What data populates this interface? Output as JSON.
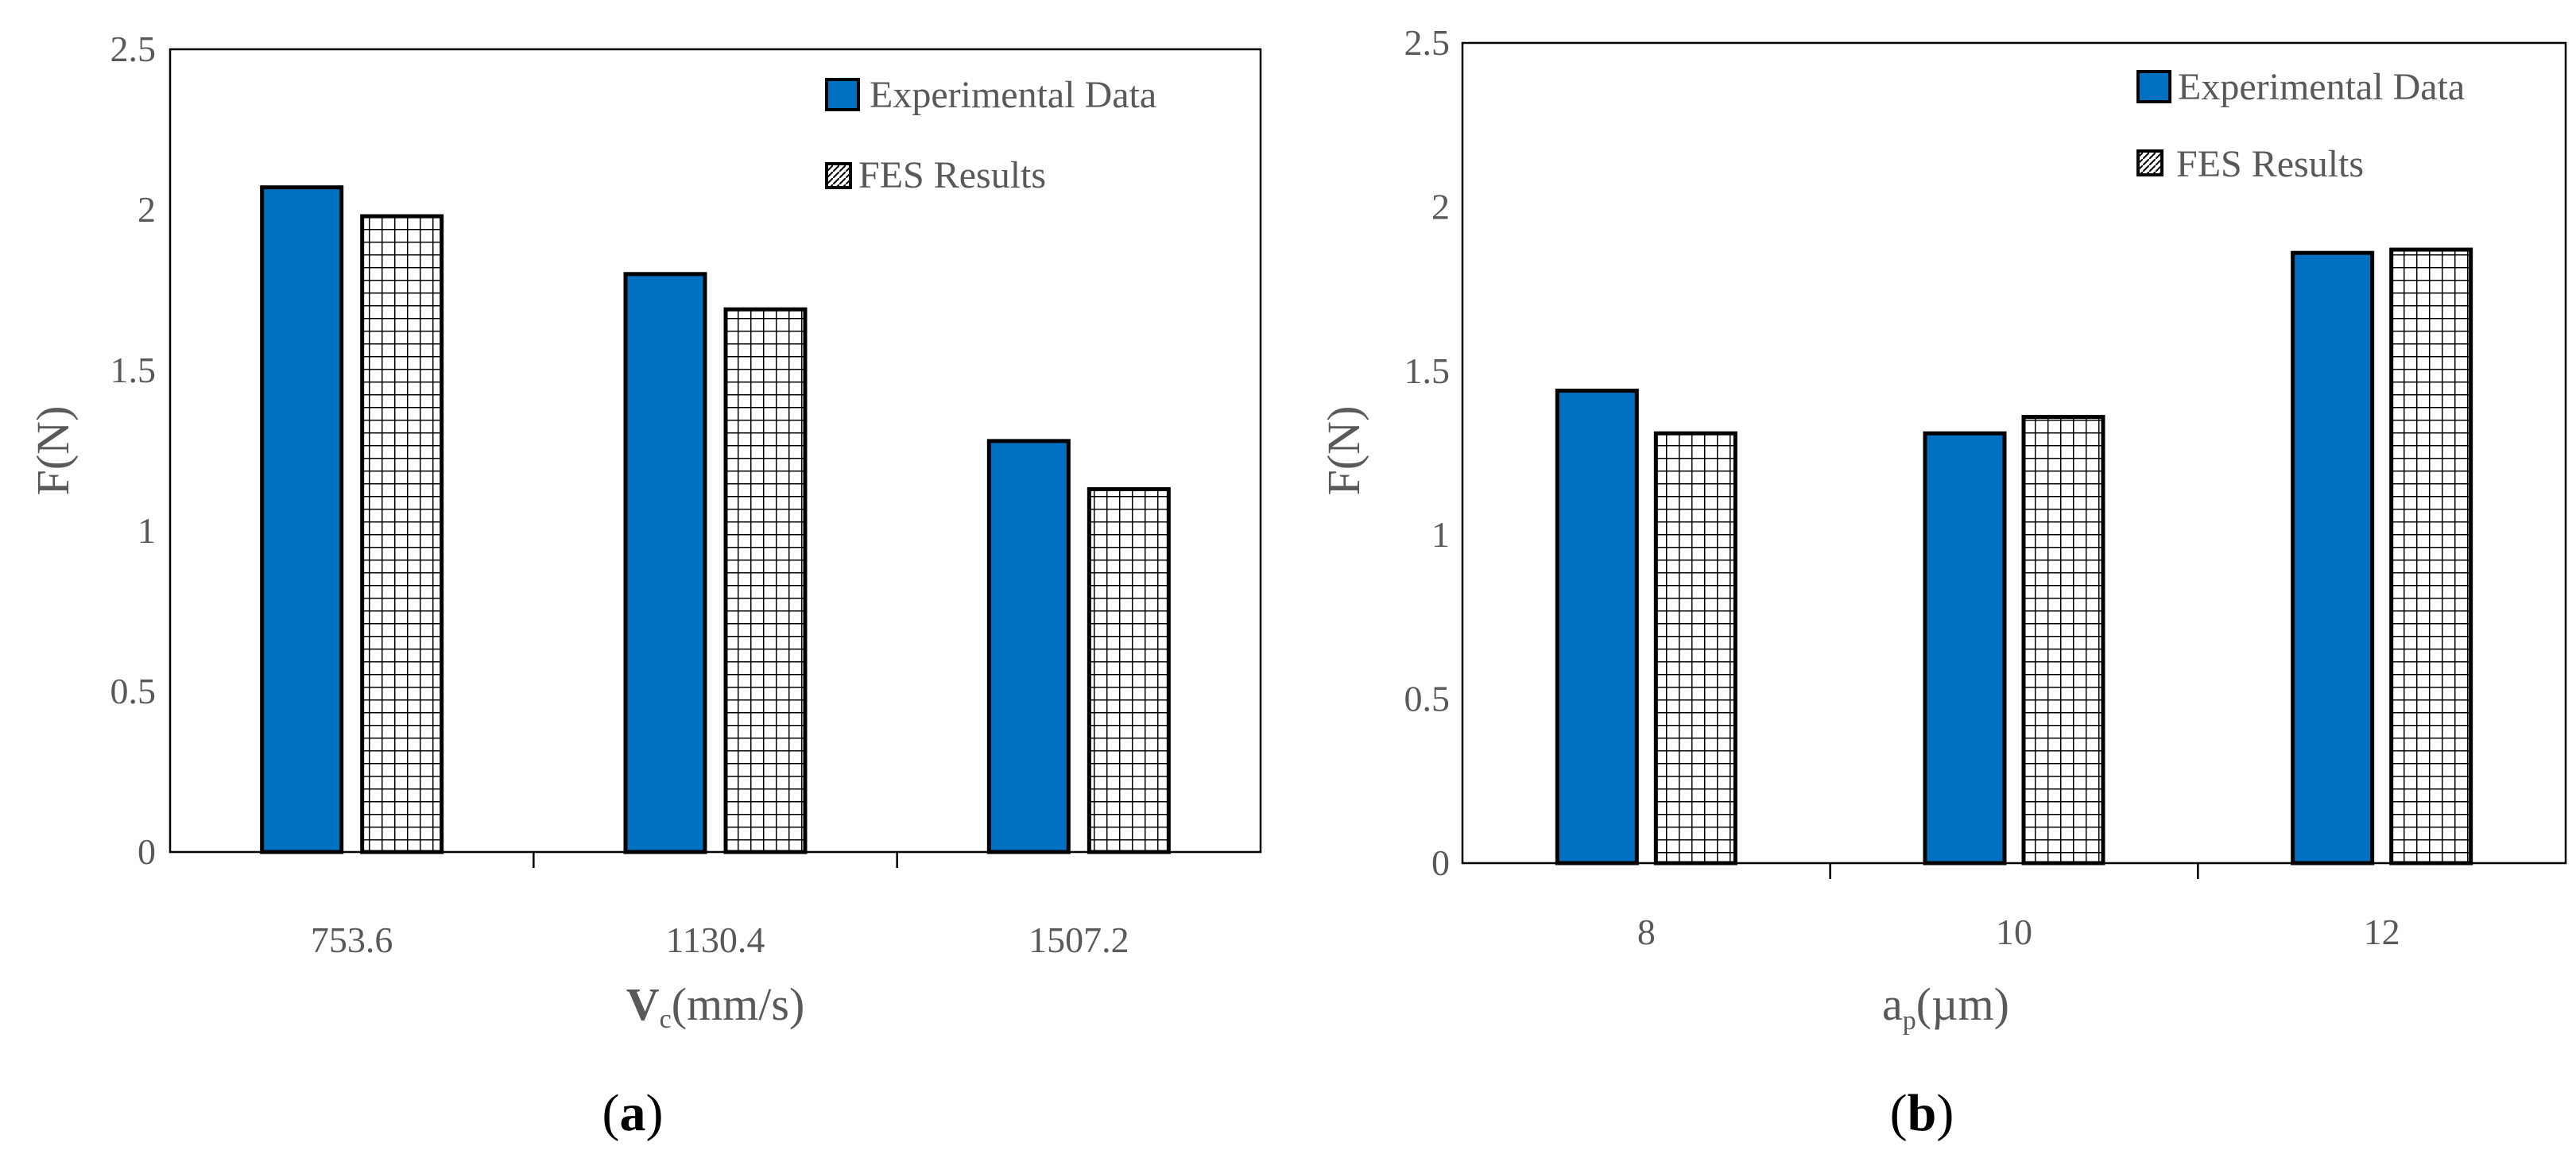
{
  "chart_data": [
    {
      "type": "bar",
      "panel_label": "a",
      "categories": [
        "753.6",
        "1130.4",
        "1507.2"
      ],
      "series": [
        {
          "name": "Experimental Data",
          "values": [
            2.07,
            1.8,
            1.28
          ]
        },
        {
          "name": "FES Results",
          "values": [
            1.98,
            1.69,
            1.13
          ]
        }
      ],
      "ylabel": "F(N)",
      "xlabel_main": "V",
      "xlabel_sub": "c",
      "xlabel_rest": "(mm/s)",
      "ylim": [
        0,
        2.5
      ],
      "yticks": [
        "0",
        "0.5",
        "1",
        "1.5",
        "2",
        "2.5"
      ],
      "legend_position": "top-right",
      "grid": false
    },
    {
      "type": "bar",
      "panel_label": "b",
      "categories": [
        "8",
        "10",
        "12"
      ],
      "series": [
        {
          "name": "Experimental Data",
          "values": [
            1.44,
            1.31,
            1.86
          ]
        },
        {
          "name": "FES Results",
          "values": [
            1.31,
            1.36,
            1.87
          ]
        }
      ],
      "ylabel": "F(N)",
      "xlabel_main": "a",
      "xlabel_sub": "p",
      "xlabel_rest": "(µm)",
      "ylim": [
        0,
        2.5
      ],
      "yticks": [
        "0",
        "0.5",
        "1",
        "1.5",
        "2",
        "2.5"
      ],
      "legend_position": "top-right",
      "grid": false
    }
  ],
  "colors": {
    "experimental": "#0070c0",
    "fes_fill": "#ffffff",
    "frame": "#000000",
    "text": "#595959"
  }
}
